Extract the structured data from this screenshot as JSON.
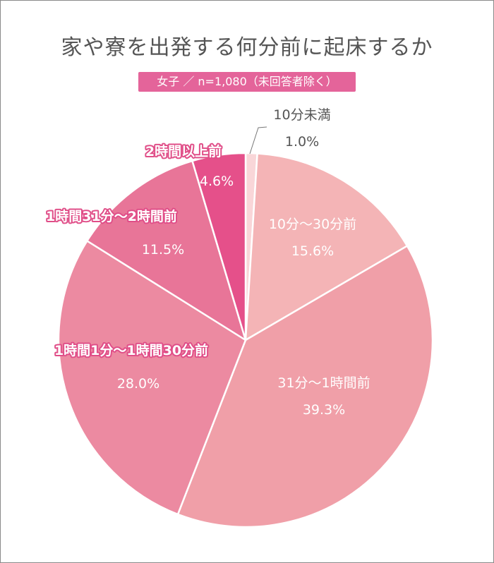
{
  "chart_data": {
    "type": "pie",
    "title": "家や寮を出発する何分前に起床するか",
    "subtitle": "女子 ／ n=1,080（未回答者除く）",
    "start_angle_deg": 0,
    "direction": "clockwise",
    "slices": [
      {
        "label": "10分未満",
        "value": 1.0,
        "value_label": "1.0%",
        "color": "#f9d6d8"
      },
      {
        "label": "10分〜30分前",
        "value": 15.6,
        "value_label": "15.6%",
        "color": "#f4b4b6"
      },
      {
        "label": "31分〜1時間前",
        "value": 39.3,
        "value_label": "39.3%",
        "color": "#f09fa8"
      },
      {
        "label": "1時間1分〜1時間30分前",
        "value": 28.0,
        "value_label": "28.0%",
        "color": "#ec8aa1"
      },
      {
        "label": "1時間31分〜2時間前",
        "value": 11.5,
        "value_label": "11.5%",
        "color": "#e87598"
      },
      {
        "label": "2時間以上前",
        "value": 4.6,
        "value_label": "4.6%",
        "color": "#e5508a"
      }
    ]
  }
}
